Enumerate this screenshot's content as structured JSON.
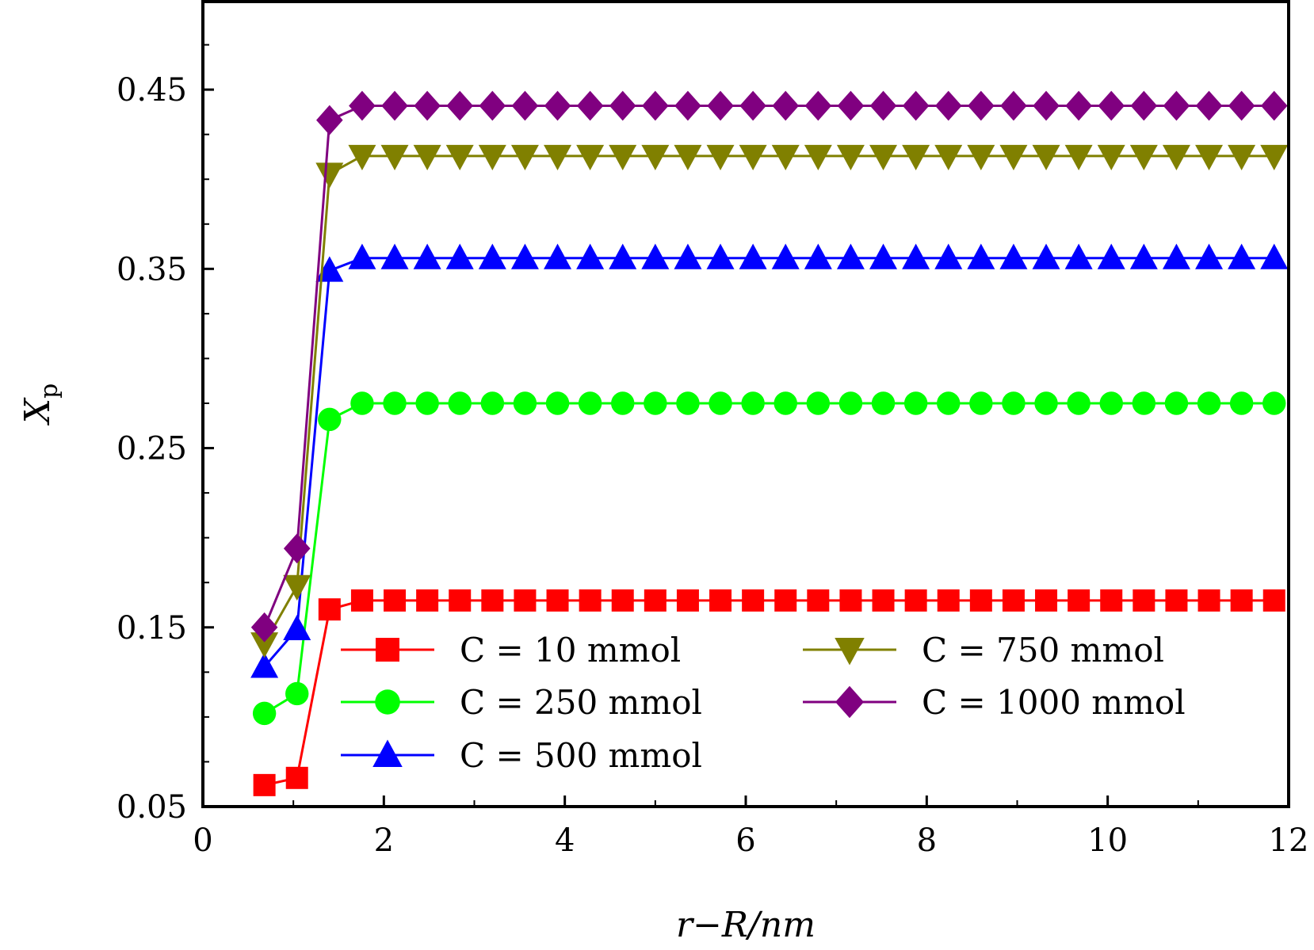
{
  "chart_data": {
    "type": "line",
    "title": "",
    "xlabel": "r−R/nm",
    "ylabel": "X",
    "ylabel_sub": "p",
    "xlim": [
      0,
      12
    ],
    "ylim": [
      0.05,
      0.5
    ],
    "xticks": [
      0,
      2,
      4,
      6,
      8,
      10,
      12
    ],
    "xtick_labels": [
      "0",
      "2",
      "4",
      "6",
      "8",
      "10",
      "12"
    ],
    "yticks": [
      0.05,
      0.15,
      0.25,
      0.35,
      0.45
    ],
    "ytick_labels": [
      "0.05",
      "0.15",
      "0.25",
      "0.35",
      "0.45"
    ],
    "grid": false,
    "legend_position": "bottom-right",
    "x": [
      0.68,
      1.04,
      1.4,
      1.76,
      2.12,
      2.48,
      2.84,
      3.2,
      3.56,
      3.92,
      4.28,
      4.64,
      5.0,
      5.36,
      5.72,
      6.08,
      6.44,
      6.8,
      7.16,
      7.52,
      7.88,
      8.24,
      8.6,
      8.96,
      9.32,
      9.68,
      10.04,
      10.4,
      10.76,
      11.12,
      11.48,
      11.84
    ],
    "series": [
      {
        "name": "C = 10 mmol",
        "color": "#ff0000",
        "marker": "square",
        "values": [
          0.062,
          0.066,
          0.16,
          0.165,
          0.165,
          0.165,
          0.165,
          0.165,
          0.165,
          0.165,
          0.165,
          0.165,
          0.165,
          0.165,
          0.165,
          0.165,
          0.165,
          0.165,
          0.165,
          0.165,
          0.165,
          0.165,
          0.165,
          0.165,
          0.165,
          0.165,
          0.165,
          0.165,
          0.165,
          0.165,
          0.165,
          0.165
        ]
      },
      {
        "name": "C = 250 mmol",
        "color": "#00ff00",
        "marker": "circle",
        "values": [
          0.102,
          0.113,
          0.266,
          0.275,
          0.275,
          0.275,
          0.275,
          0.275,
          0.275,
          0.275,
          0.275,
          0.275,
          0.275,
          0.275,
          0.275,
          0.275,
          0.275,
          0.275,
          0.275,
          0.275,
          0.275,
          0.275,
          0.275,
          0.275,
          0.275,
          0.275,
          0.275,
          0.275,
          0.275,
          0.275,
          0.275,
          0.275
        ]
      },
      {
        "name": "C = 500 mmol",
        "color": "#0000ff",
        "marker": "triangle-up",
        "values": [
          0.128,
          0.149,
          0.349,
          0.356,
          0.356,
          0.356,
          0.356,
          0.356,
          0.356,
          0.356,
          0.356,
          0.356,
          0.356,
          0.356,
          0.356,
          0.356,
          0.356,
          0.356,
          0.356,
          0.356,
          0.356,
          0.356,
          0.356,
          0.356,
          0.356,
          0.356,
          0.356,
          0.356,
          0.356,
          0.356,
          0.356,
          0.356
        ]
      },
      {
        "name": "C = 750 mmol",
        "color": "#808000",
        "marker": "triangle-down",
        "values": [
          0.141,
          0.173,
          0.403,
          0.413,
          0.413,
          0.413,
          0.413,
          0.413,
          0.413,
          0.413,
          0.413,
          0.413,
          0.413,
          0.413,
          0.413,
          0.413,
          0.413,
          0.413,
          0.413,
          0.413,
          0.413,
          0.413,
          0.413,
          0.413,
          0.413,
          0.413,
          0.413,
          0.413,
          0.413,
          0.413,
          0.413,
          0.413
        ]
      },
      {
        "name": "C = 1000 mmol",
        "color": "#800080",
        "marker": "diamond",
        "values": [
          0.15,
          0.194,
          0.433,
          0.441,
          0.441,
          0.441,
          0.441,
          0.441,
          0.441,
          0.441,
          0.441,
          0.441,
          0.441,
          0.441,
          0.441,
          0.441,
          0.441,
          0.441,
          0.441,
          0.441,
          0.441,
          0.441,
          0.441,
          0.441,
          0.441,
          0.441,
          0.441,
          0.441,
          0.441,
          0.441,
          0.441,
          0.441
        ]
      }
    ]
  }
}
